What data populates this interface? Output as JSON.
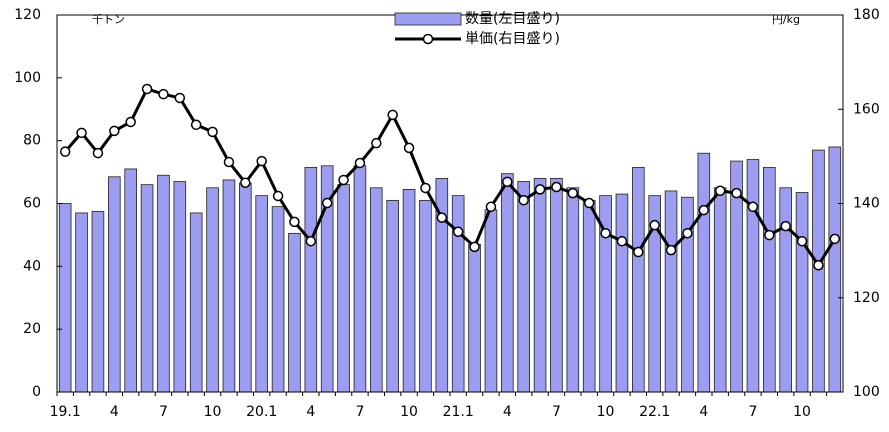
{
  "chart_data": {
    "type": "bar_line",
    "y_unit_label": "千トン",
    "y2_unit_label": "円/kg",
    "categories": [
      "19.1",
      null,
      null,
      "4",
      null,
      null,
      "7",
      null,
      null,
      "10",
      null,
      null,
      "20.1",
      null,
      null,
      "4",
      null,
      null,
      "7",
      null,
      null,
      "10",
      null,
      null,
      "21.1",
      null,
      null,
      "4",
      null,
      null,
      "7",
      null,
      null,
      "10",
      null,
      null,
      "22.1",
      null,
      null,
      "4",
      null,
      null,
      "7",
      null,
      null,
      "10",
      null,
      null
    ],
    "series": [
      {
        "name": "数量(左目盛り)",
        "kind": "bar",
        "axis": "y",
        "color": "#9c9cf0",
        "values": [
          60,
          57,
          57.5,
          68.5,
          71,
          66,
          69,
          67,
          57,
          65,
          67.5,
          66.5,
          62.5,
          59,
          50.5,
          71.5,
          72,
          66,
          72,
          65,
          61,
          64.5,
          61,
          68,
          62.5,
          47,
          58,
          69.5,
          67,
          68,
          68,
          65,
          61,
          62.5,
          63,
          71.5,
          62.5,
          64,
          62,
          76,
          65,
          73.5,
          74,
          71.5,
          65,
          63.5,
          77,
          78
        ]
      },
      {
        "name": "単価(右目盛り)",
        "kind": "line",
        "axis": "y2",
        "color": "#000000",
        "values": [
          151,
          155,
          150.7,
          155.4,
          157.3,
          164.3,
          163.2,
          162.4,
          156.7,
          155.2,
          148.8,
          144.4,
          149,
          141.6,
          136.1,
          132,
          140.1,
          145,
          148.6,
          152.8,
          158.8,
          151.8,
          143.3,
          137,
          134,
          130.8,
          139.3,
          144.6,
          140.7,
          143,
          143.5,
          142.2,
          140.1,
          133.7,
          132,
          129.7,
          135.4,
          130.1,
          133.7,
          138.6,
          142.7,
          142.2,
          139.3,
          133.3,
          135.2,
          132,
          126.9,
          132.5
        ]
      }
    ],
    "ylim": [
      0,
      120
    ],
    "yticks": [
      0,
      20,
      40,
      60,
      80,
      100,
      120
    ],
    "y2lim": [
      100,
      180
    ],
    "y2ticks": [
      100,
      120,
      140,
      160,
      180
    ]
  }
}
